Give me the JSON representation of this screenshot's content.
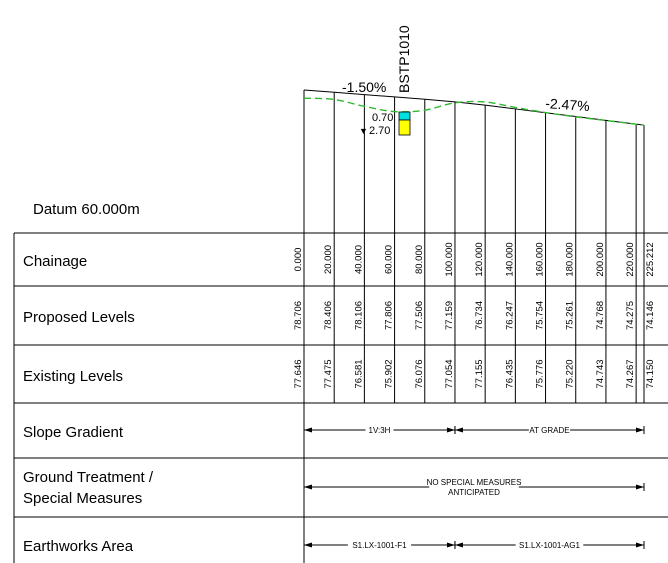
{
  "profile": {
    "datum": "Datum 60.000m",
    "gradient_left": "-1.50%",
    "gradient_right": "-2.47%",
    "borehole": {
      "id": "BSTP1010",
      "top_label": "0.70",
      "water_label": "2.70",
      "water_symbol": "▼"
    },
    "colors": {
      "existing_ground": "#2db82d",
      "borehole_top": "#00e0e0",
      "borehole_body": "#ffff00",
      "lines": "#000000"
    }
  },
  "rows": [
    {
      "label": "Chainage"
    },
    {
      "label": "Proposed Levels"
    },
    {
      "label": "Existing Levels"
    },
    {
      "label": "Slope Gradient"
    },
    {
      "label": "Ground Treatment /\nSpecial Measures"
    },
    {
      "label": "Earthworks Area"
    }
  ],
  "chainage": [
    "0.000",
    "20.000",
    "40.000",
    "60.000",
    "80.000",
    "100.000",
    "120.000",
    "140.000",
    "160.000",
    "180.000",
    "200.000",
    "220.000",
    "225.212"
  ],
  "proposed": [
    "78.706",
    "78.406",
    "78.106",
    "77.806",
    "77.506",
    "77.159",
    "76.734",
    "76.247",
    "75.754",
    "75.261",
    "74.768",
    "74.275",
    "74.146"
  ],
  "existing": [
    "77.646",
    "77.475",
    "76.581",
    "75.902",
    "76.076",
    "77.054",
    "77.155",
    "76.435",
    "75.776",
    "75.220",
    "74.743",
    "74.267",
    "74.150"
  ],
  "slope_gradient": [
    "1V:3H",
    "AT GRADE"
  ],
  "ground_treatment": "NO SPECIAL MEASURES\nANTICIPATED",
  "earthworks_area": [
    "S1.LX-1001-F1",
    "S1.LX-1001-AG1"
  ]
}
